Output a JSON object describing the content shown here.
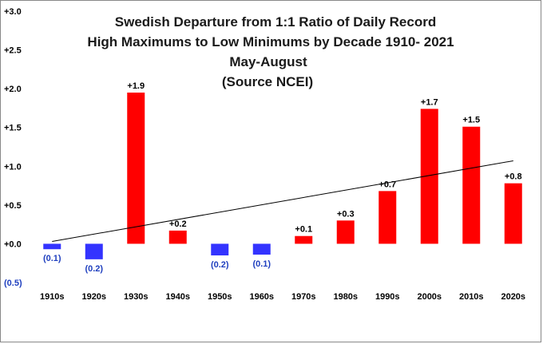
{
  "chart_data": {
    "type": "bar",
    "title_lines": [
      "Swedish Departure from 1:1 Ratio of Daily Record",
      "High Maximums to Low Minimums by Decade 1910- 2021",
      "May-August",
      "(Source NCEI)"
    ],
    "categories": [
      "1910s",
      "1920s",
      "1930s",
      "1940s",
      "1950s",
      "1960s",
      "1970s",
      "1980s",
      "1990s",
      "2000s",
      "2010s",
      "2020s"
    ],
    "values": [
      -0.07,
      -0.2,
      1.95,
      0.17,
      -0.15,
      -0.14,
      0.1,
      0.3,
      0.68,
      1.74,
      1.51,
      0.78
    ],
    "data_labels": [
      "(0.1)",
      "(0.2)",
      "+1.9",
      "+0.2",
      "(0.2)",
      "(0.1)",
      "+0.1",
      "+0.3",
      "+0.7",
      "+1.7",
      "+1.5",
      "+0.8"
    ],
    "y_ticks": [
      3.0,
      2.5,
      2.0,
      1.5,
      1.0,
      0.5,
      0.0,
      -0.5
    ],
    "y_tick_labels": [
      "+3.0",
      "+2.5",
      "+2.0",
      "+1.5",
      "+1.0",
      "+0.5",
      "+0.0",
      "(0.5)"
    ],
    "ylim": [
      -0.5,
      3.0
    ],
    "trendline": {
      "start": 0.03,
      "end": 1.07
    },
    "colors": {
      "positive": "#ff0000",
      "negative": "#3333ff",
      "trend": "#000000",
      "axis_label_negative": "#1f3fbf",
      "axis_label_positive": "#000000"
    },
    "grid": false,
    "legend": "none"
  }
}
